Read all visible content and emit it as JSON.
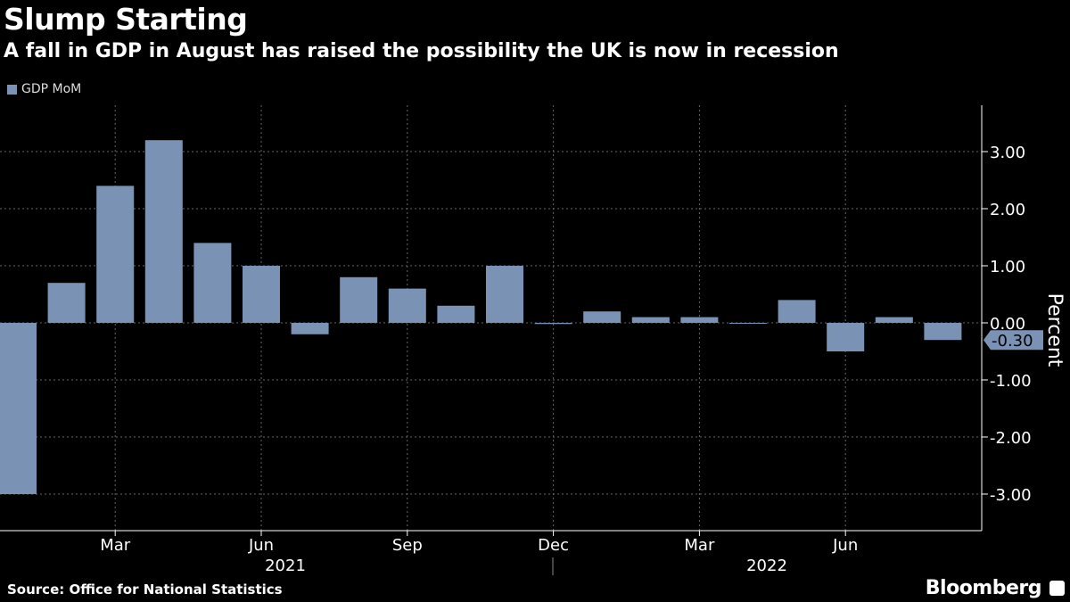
{
  "title": "Slump Starting",
  "subtitle": "A fall in GDP in August has raised the possibility the UK is now in recession",
  "source": "Source: Office for National Statistics",
  "brand": "Bloomberg",
  "colors": {
    "bar": "#7a93b4",
    "background": "#000000"
  },
  "chart_data": {
    "type": "bar",
    "categories": [
      "2021-01",
      "2021-02",
      "2021-03",
      "2021-04",
      "2021-05",
      "2021-06",
      "2021-07",
      "2021-08",
      "2021-09",
      "2021-10",
      "2021-11",
      "2021-12",
      "2022-01",
      "2022-02",
      "2022-03",
      "2022-04",
      "2022-05",
      "2022-06",
      "2022-07",
      "2022-08"
    ],
    "series": [
      {
        "name": "GDP MoM",
        "values": [
          -3.0,
          0.7,
          2.4,
          3.2,
          1.4,
          1.0,
          -0.2,
          0.8,
          0.6,
          0.3,
          1.0,
          -0.02,
          0.2,
          0.1,
          0.1,
          -0.01,
          0.4,
          -0.5,
          0.1,
          -0.3
        ]
      }
    ],
    "ylabel": "Percent",
    "ylim": [
      -3.65,
      3.8
    ],
    "yticks": [
      "3.00",
      "2.00",
      "1.00",
      "0.00",
      "-1.00",
      "-2.00",
      "-3.00"
    ],
    "ytick_values": [
      3,
      2,
      1,
      0,
      -1,
      -2,
      -3
    ],
    "xticks": [
      {
        "label": "Mar",
        "category": "2021-03"
      },
      {
        "label": "Jun",
        "category": "2021-06"
      },
      {
        "label": "Sep",
        "category": "2021-09"
      },
      {
        "label": "Dec",
        "category": "2021-12"
      },
      {
        "label": "Mar",
        "category": "2022-03"
      },
      {
        "label": "Jun",
        "category": "2022-06"
      }
    ],
    "year_labels": [
      {
        "label": "2021"
      },
      {
        "label": "2022"
      }
    ],
    "last_value_label": "-0.30",
    "legend": "top-left",
    "grid": true,
    "y_axis_side": "right"
  }
}
